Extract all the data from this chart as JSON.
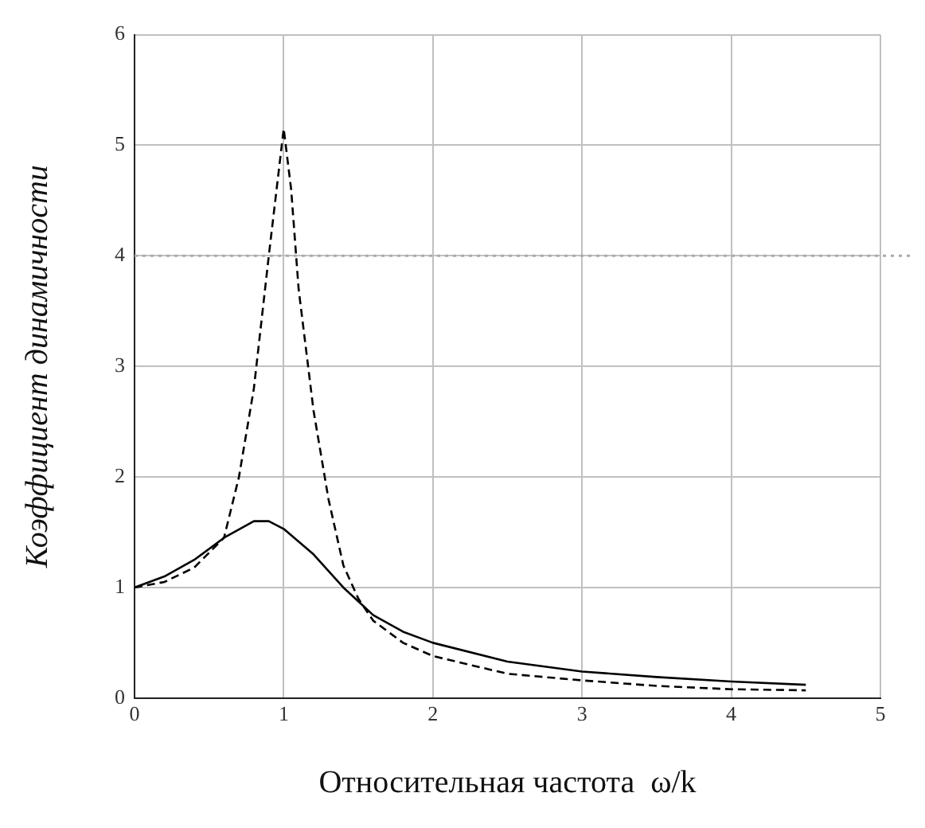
{
  "chart_data": {
    "type": "line",
    "xlabel": "Относительная частота  ω/k",
    "ylabel": "Коэффициент динамичности",
    "xlim": [
      0,
      5
    ],
    "ylim": [
      0,
      6
    ],
    "xticks": [
      0,
      1,
      2,
      3,
      4,
      5
    ],
    "yticks": [
      0,
      1,
      2,
      3,
      4,
      5,
      6
    ],
    "grid": true,
    "legend": false,
    "marker": "none",
    "series": [
      {
        "color": "#000000",
        "line_style": "solid",
        "x": [
          0,
          0.2,
          0.4,
          0.6,
          0.8,
          0.9,
          1.0,
          1.2,
          1.4,
          1.6,
          1.8,
          2.0,
          2.5,
          3.0,
          3.5,
          4.0,
          4.5
        ],
        "values": [
          1.0,
          1.1,
          1.25,
          1.45,
          1.6,
          1.6,
          1.53,
          1.3,
          1.0,
          0.75,
          0.6,
          0.5,
          0.33,
          0.24,
          0.19,
          0.15,
          0.12
        ]
      },
      {
        "color": "#000000",
        "line_style": "dashed",
        "x": [
          0,
          0.2,
          0.4,
          0.6,
          0.7,
          0.8,
          0.9,
          1.0,
          1.05,
          1.1,
          1.2,
          1.3,
          1.4,
          1.5,
          1.6,
          1.8,
          2.0,
          2.5,
          3.0,
          3.5,
          4.0,
          4.5
        ],
        "values": [
          1.0,
          1.05,
          1.18,
          1.45,
          2.0,
          2.8,
          4.0,
          5.15,
          4.6,
          3.7,
          2.6,
          1.8,
          1.2,
          0.9,
          0.7,
          0.5,
          0.38,
          0.22,
          0.16,
          0.11,
          0.08,
          0.07
        ]
      }
    ],
    "ref_lines": [
      {
        "axis": "y",
        "value": 4,
        "color": "#aaaaaa",
        "line_style": "dotted"
      }
    ]
  }
}
